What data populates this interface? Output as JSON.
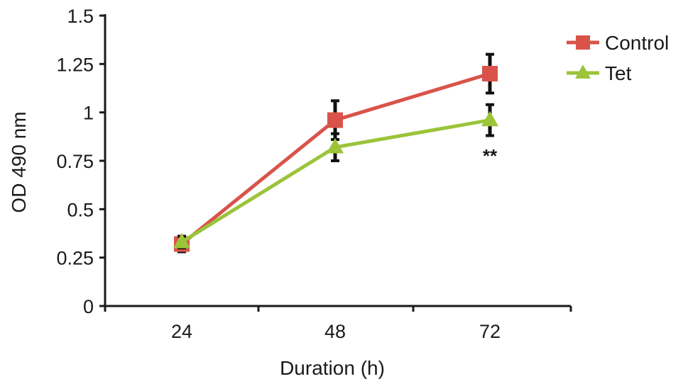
{
  "chart_data": {
    "type": "line",
    "title": "",
    "xlabel": "Duration (h)",
    "ylabel": "OD 490 nm",
    "categories": [
      "24",
      "48",
      "72"
    ],
    "ylim": [
      0,
      1.5
    ],
    "y_ticks": [
      "0",
      "0.25",
      "0.5",
      "0.75",
      "1",
      "1.25",
      "1.5"
    ],
    "grid": false,
    "legend_position": "top-right",
    "series": [
      {
        "name": "Control",
        "color": "#d9534a",
        "marker": "square",
        "values": [
          0.32,
          0.96,
          1.2
        ],
        "error": [
          0.04,
          0.1,
          0.1
        ]
      },
      {
        "name": "Tet",
        "color": "#9bc43a",
        "marker": "triangle",
        "values": [
          0.33,
          0.82,
          0.96
        ],
        "error": [
          0.03,
          0.07,
          0.08
        ]
      }
    ],
    "annotations": [
      {
        "category": "72",
        "text": "**"
      }
    ]
  }
}
